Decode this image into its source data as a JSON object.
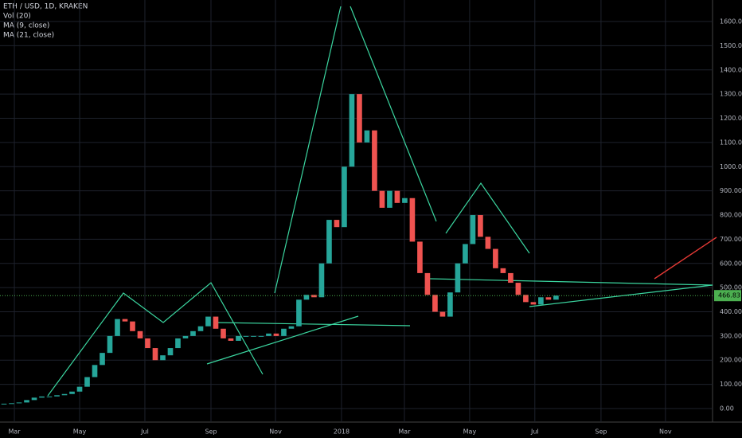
{
  "chart_data": {
    "type": "candlestick",
    "title": "ETH / USD, 1D, KRAKEN",
    "indicators": [
      "Vol (20)",
      "MA (9, close)",
      "MA (21, close)"
    ],
    "categories": [
      null,
      null,
      null,
      null,
      null,
      null,
      null,
      null,
      null,
      null,
      null,
      null,
      null,
      null,
      null,
      null,
      null,
      null,
      null,
      null,
      null,
      null,
      null,
      null,
      null,
      null,
      null,
      null,
      null,
      null,
      null,
      null,
      null,
      null,
      null,
      null,
      null,
      null,
      null,
      null,
      null,
      null,
      null,
      null,
      null,
      null,
      null,
      null,
      null,
      null,
      null,
      null,
      null,
      null,
      null,
      null,
      null,
      null,
      null,
      null,
      null,
      null,
      null,
      null,
      null,
      null,
      null,
      null,
      null,
      null,
      null,
      null,
      null,
      null
    ],
    "series": [
      {
        "name": "ETH / USD",
        "up_color": "#26a69a",
        "down_color": "#ef5350",
        "values": [
          20,
          22,
          25,
          35,
          45,
          50,
          50,
          55,
          60,
          70,
          90,
          130,
          180,
          230,
          300,
          370,
          360,
          320,
          290,
          250,
          200,
          220,
          250,
          290,
          300,
          320,
          340,
          380,
          330,
          290,
          280,
          300,
          300,
          300,
          300,
          310,
          300,
          330,
          340,
          450,
          470,
          460,
          600,
          780,
          750,
          1000,
          1300,
          1100,
          1150,
          900,
          830,
          900,
          850,
          870,
          690,
          560,
          470,
          400,
          380,
          480,
          600,
          680,
          800,
          710,
          660,
          580,
          560,
          520,
          470,
          440,
          430,
          460,
          450,
          467
        ]
      }
    ],
    "last_price": {
      "value": 466.83,
      "label": "466.83",
      "color": "#4caf50"
    },
    "xlim": [
      -0.53,
      93.7
    ],
    "xticks": [
      {
        "value": 1.37,
        "label": "Mar"
      },
      {
        "value": 10,
        "label": "May"
      },
      {
        "value": 18.63,
        "label": "Jul"
      },
      {
        "value": 27.37,
        "label": "Sep"
      },
      {
        "value": 35.9,
        "label": "Nov"
      },
      {
        "value": 44.63,
        "label": "2018"
      },
      {
        "value": 52.95,
        "label": "Mar"
      },
      {
        "value": 61.58,
        "label": "May"
      },
      {
        "value": 70.2,
        "label": "Jul"
      },
      {
        "value": 78.95,
        "label": "Sep"
      },
      {
        "value": 87.47,
        "label": "Nov"
      }
    ],
    "ylim": [
      -56,
      1689
    ],
    "yticks": [
      {
        "value": 0,
        "label": "0.00"
      },
      {
        "value": 100,
        "label": "100.00"
      },
      {
        "value": 200,
        "label": "200.00"
      },
      {
        "value": 300,
        "label": "300.00"
      },
      {
        "value": 400,
        "label": "400.00"
      },
      {
        "value": 500,
        "label": "500.00"
      },
      {
        "value": 600,
        "label": "600.00"
      },
      {
        "value": 700,
        "label": "700.00"
      },
      {
        "value": 800,
        "label": "800.00"
      },
      {
        "value": 900,
        "label": "900.00"
      },
      {
        "value": 1000,
        "label": "1000.00"
      },
      {
        "value": 1100,
        "label": "1100.00"
      },
      {
        "value": 1200,
        "label": "1200.00"
      },
      {
        "value": 1300,
        "label": "1300.00"
      },
      {
        "value": 1400,
        "label": "1400.00"
      },
      {
        "value": 1500,
        "label": "1500.00"
      },
      {
        "value": 1600,
        "label": "1600.00"
      }
    ],
    "grid": true
  }
}
